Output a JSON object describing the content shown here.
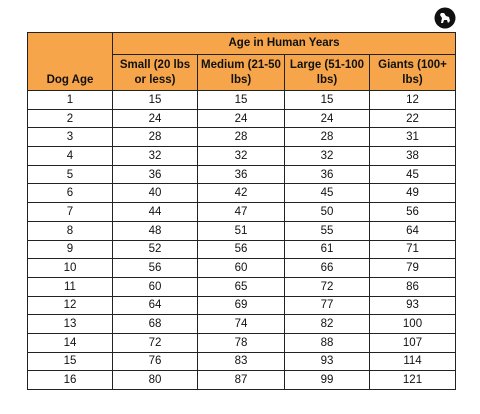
{
  "table": {
    "group_header": "Age in Human Years",
    "columns": [
      "Dog Age",
      "Small (20 lbs or less)",
      "Medium (21-50 lbs)",
      "Large (51-100 lbs)",
      "Giants (100+ lbs)"
    ],
    "rows": [
      [
        1,
        15,
        15,
        15,
        12
      ],
      [
        2,
        24,
        24,
        24,
        22
      ],
      [
        3,
        28,
        28,
        28,
        31
      ],
      [
        4,
        32,
        32,
        32,
        38
      ],
      [
        5,
        36,
        36,
        36,
        45
      ],
      [
        6,
        40,
        42,
        45,
        49
      ],
      [
        7,
        44,
        47,
        50,
        56
      ],
      [
        8,
        48,
        51,
        55,
        64
      ],
      [
        9,
        52,
        56,
        61,
        71
      ],
      [
        10,
        56,
        60,
        66,
        79
      ],
      [
        11,
        60,
        65,
        72,
        86
      ],
      [
        12,
        64,
        69,
        77,
        93
      ],
      [
        13,
        68,
        74,
        82,
        100
      ],
      [
        14,
        72,
        78,
        88,
        107
      ],
      [
        15,
        76,
        83,
        93,
        114
      ],
      [
        16,
        80,
        87,
        99,
        121
      ]
    ]
  }
}
